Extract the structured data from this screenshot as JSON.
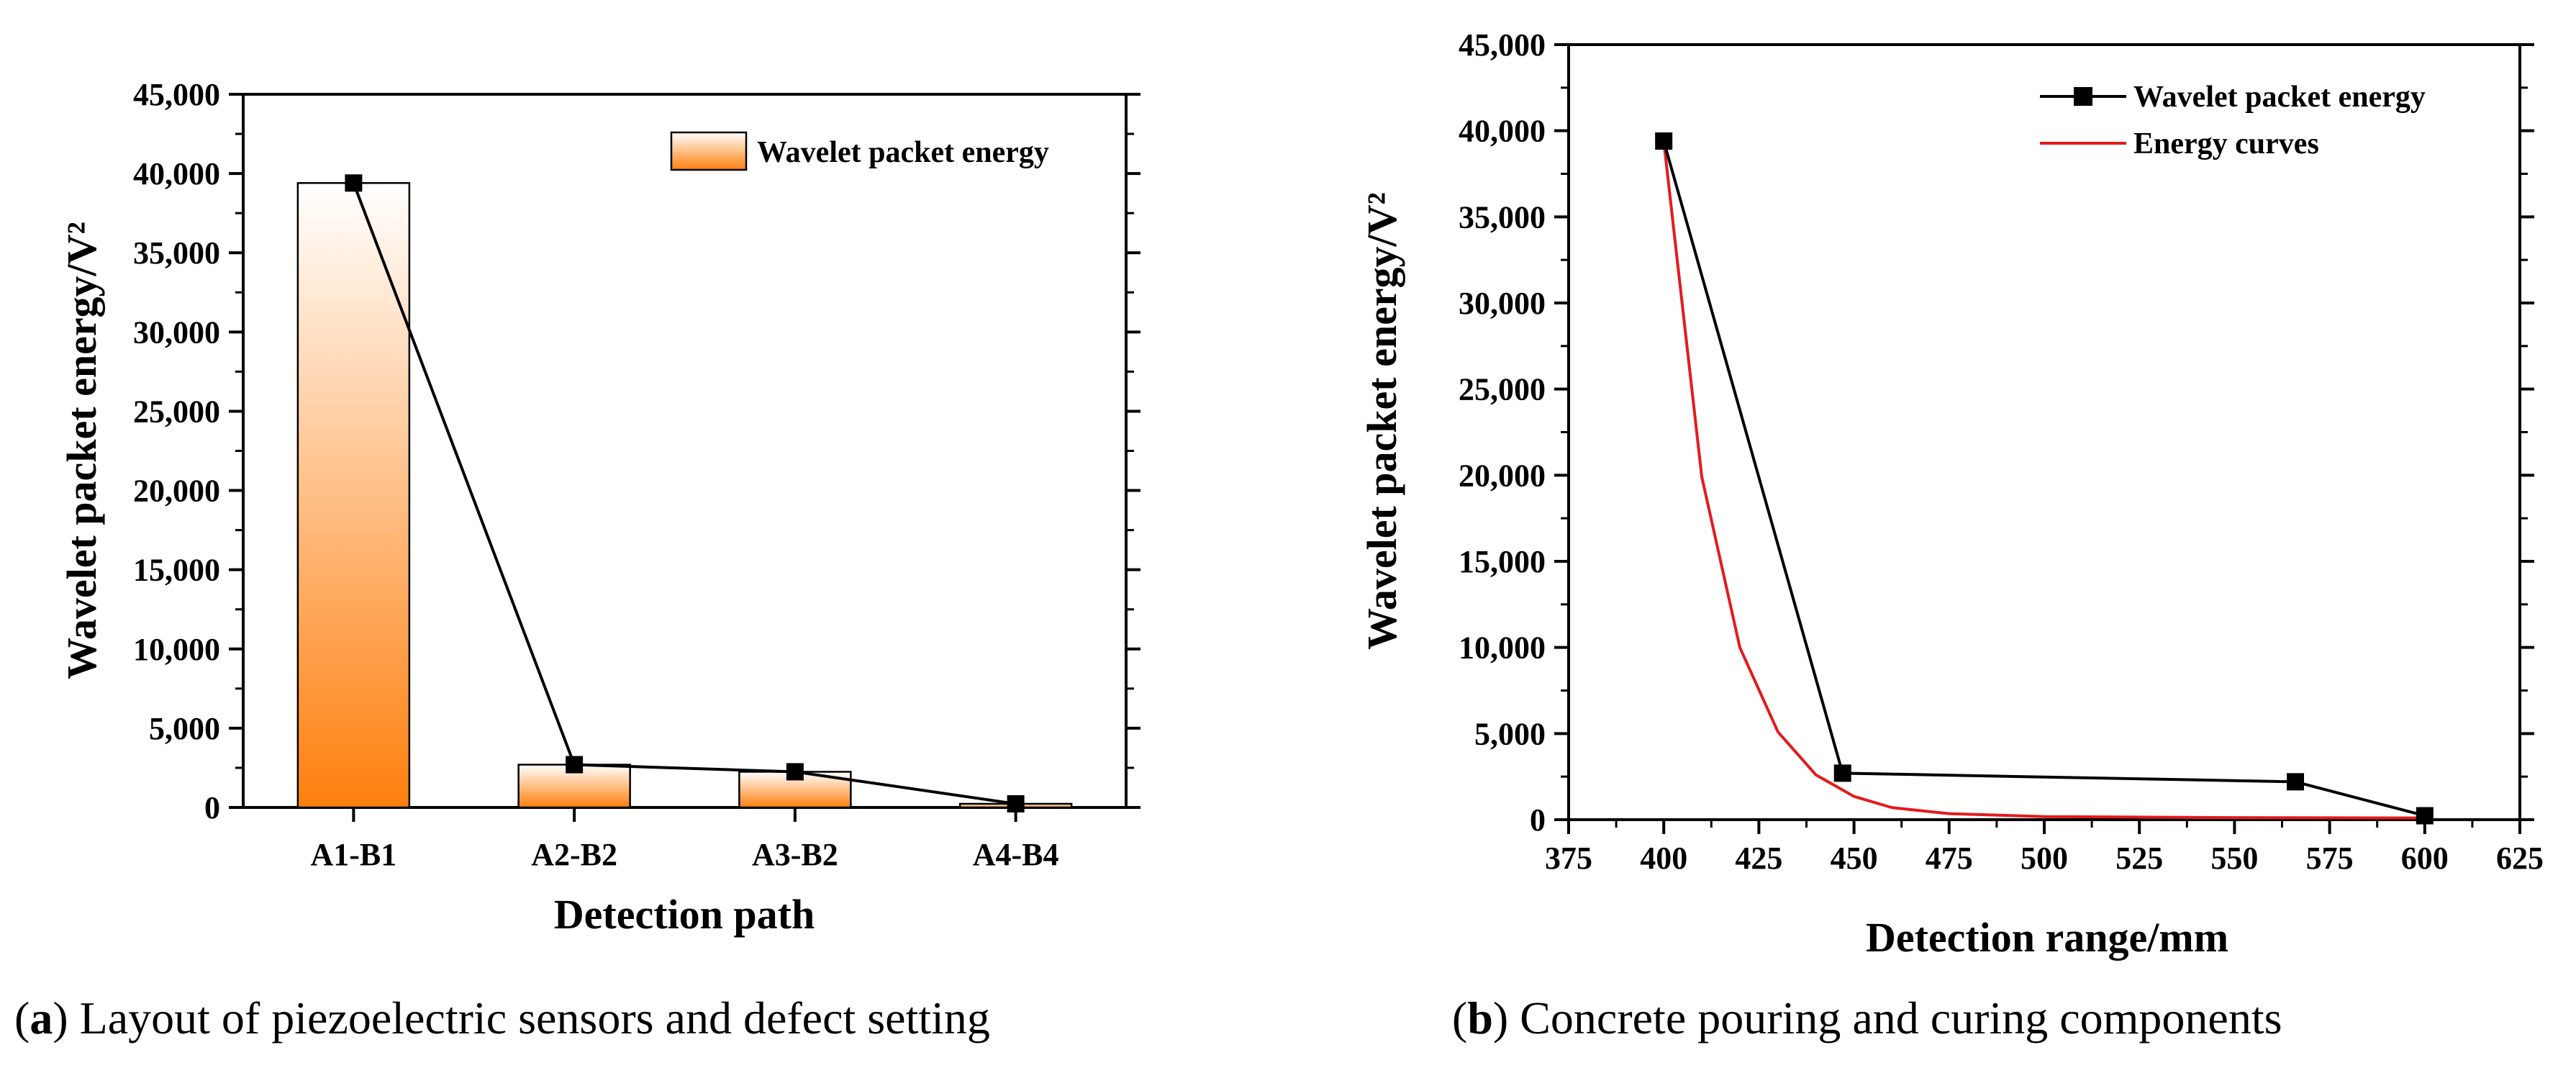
{
  "captions": {
    "a": {
      "letter": "a",
      "text": "Layout of piezoelectric sensors and defect setting"
    },
    "b": {
      "letter": "b",
      "text": "Concrete pouring and curing components"
    }
  },
  "chart_data": [
    {
      "type": "bar",
      "panel": "a",
      "xlabel": "Detection path",
      "ylabel": "Wavelet packet energy/V²",
      "categories": [
        "A1-B1",
        "A2-B2",
        "A3-B2",
        "A4-B4"
      ],
      "series": [
        {
          "name": "Wavelet packet energy",
          "values": [
            39400,
            2700,
            2250,
            230
          ]
        }
      ],
      "ylim": [
        0,
        45000
      ],
      "yticks": [
        0,
        5000,
        10000,
        15000,
        20000,
        25000,
        30000,
        35000,
        40000,
        45000
      ],
      "ytick_labels": [
        "0",
        "5,000",
        "10,000",
        "15,000",
        "20,000",
        "25,000",
        "30,000",
        "35,000",
        "40,000",
        "45,000"
      ],
      "grid": false,
      "legend_position": "top-right",
      "bar_gradient": [
        "#ffffff",
        "#ff7f0e"
      ]
    },
    {
      "type": "line",
      "panel": "b",
      "xlabel": "Detection range/mm",
      "ylabel": "Wavelet packet energy/V²",
      "xlim": [
        375,
        625
      ],
      "ylim": [
        0,
        45000
      ],
      "xticks": [
        375,
        400,
        425,
        450,
        475,
        500,
        525,
        550,
        575,
        600,
        625
      ],
      "xtick_labels": [
        "375",
        "400",
        "425",
        "450",
        "475",
        "500",
        "525",
        "550",
        "575",
        "600",
        "625"
      ],
      "yticks": [
        0,
        5000,
        10000,
        15000,
        20000,
        25000,
        30000,
        35000,
        40000,
        45000
      ],
      "ytick_labels": [
        "0",
        "5,000",
        "10,000",
        "15,000",
        "20,000",
        "25,000",
        "30,000",
        "35,000",
        "40,000",
        "45,000"
      ],
      "series": [
        {
          "name": "Wavelet packet energy",
          "color": "#000000",
          "marker": "square",
          "x": [
            400,
            447,
            566,
            600
          ],
          "y": [
            39400,
            2700,
            2200,
            230
          ]
        },
        {
          "name": "Energy curves",
          "color": "#e41a1c",
          "marker": "none",
          "x": [
            400,
            410,
            420,
            430,
            440,
            450,
            460,
            475,
            500,
            550,
            600
          ],
          "y": [
            39400,
            19900,
            10000,
            5100,
            2600,
            1350,
            700,
            350,
            180,
            120,
            100
          ]
        }
      ],
      "grid": false,
      "legend_position": "top-right"
    }
  ]
}
